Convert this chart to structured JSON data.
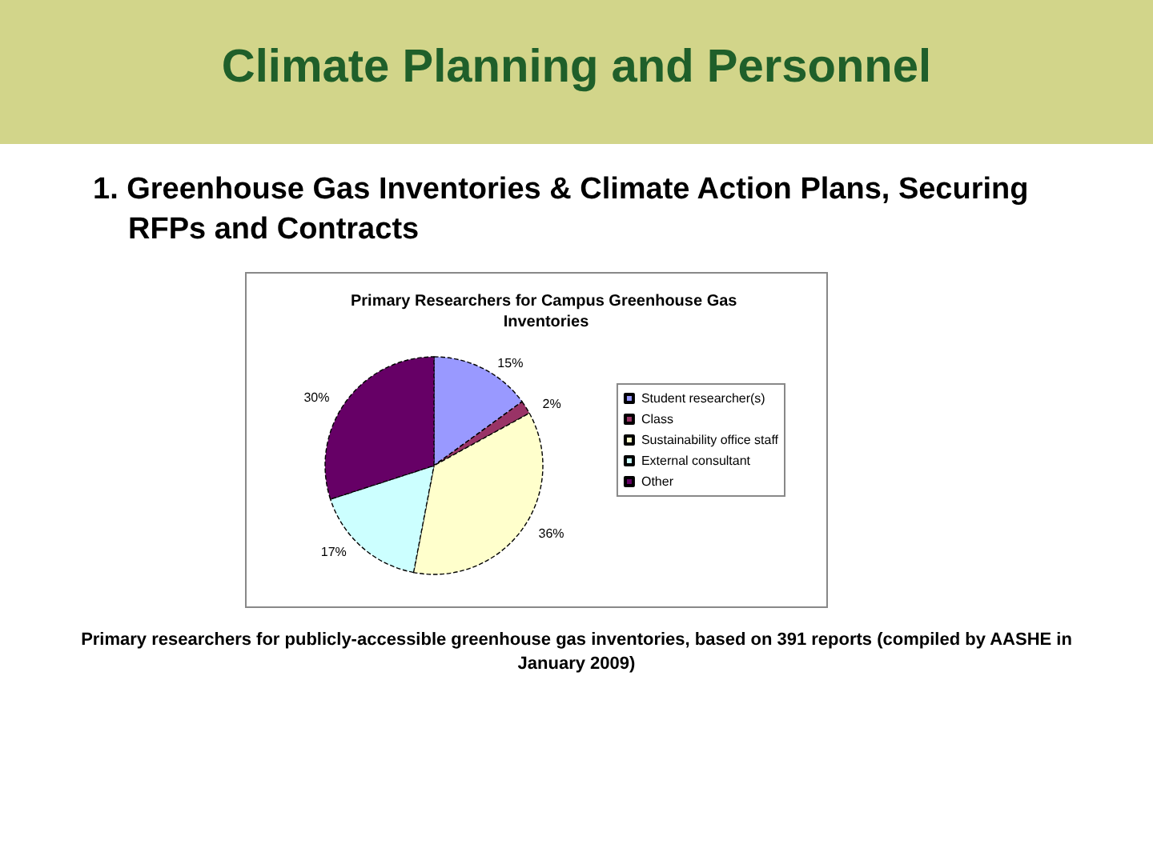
{
  "chart_data": {
    "type": "pie",
    "title": "Primary Researchers for Campus Greenhouse Gas Inventories",
    "categories": [
      "Student researcher(s)",
      "Class",
      "Sustainability office staff",
      "External consultant",
      "Other"
    ],
    "values": [
      15,
      2,
      36,
      17,
      30
    ],
    "colors": [
      "#9999ff",
      "#993366",
      "#ffffcc",
      "#ccffff",
      "#660066"
    ],
    "value_labels": [
      "15%",
      "2%",
      "36%",
      "17%",
      "30%"
    ],
    "legend": "right",
    "annotations": [
      "Climate Planning and Personnel",
      "1. Greenhouse Gas Inventories & Climate Action Plans, Securing RFPs and Contracts",
      "Primary researchers for publicly-accessible greenhouse gas inventories, based on 391 reports (compiled by AASHE in January 2009)"
    ]
  }
}
